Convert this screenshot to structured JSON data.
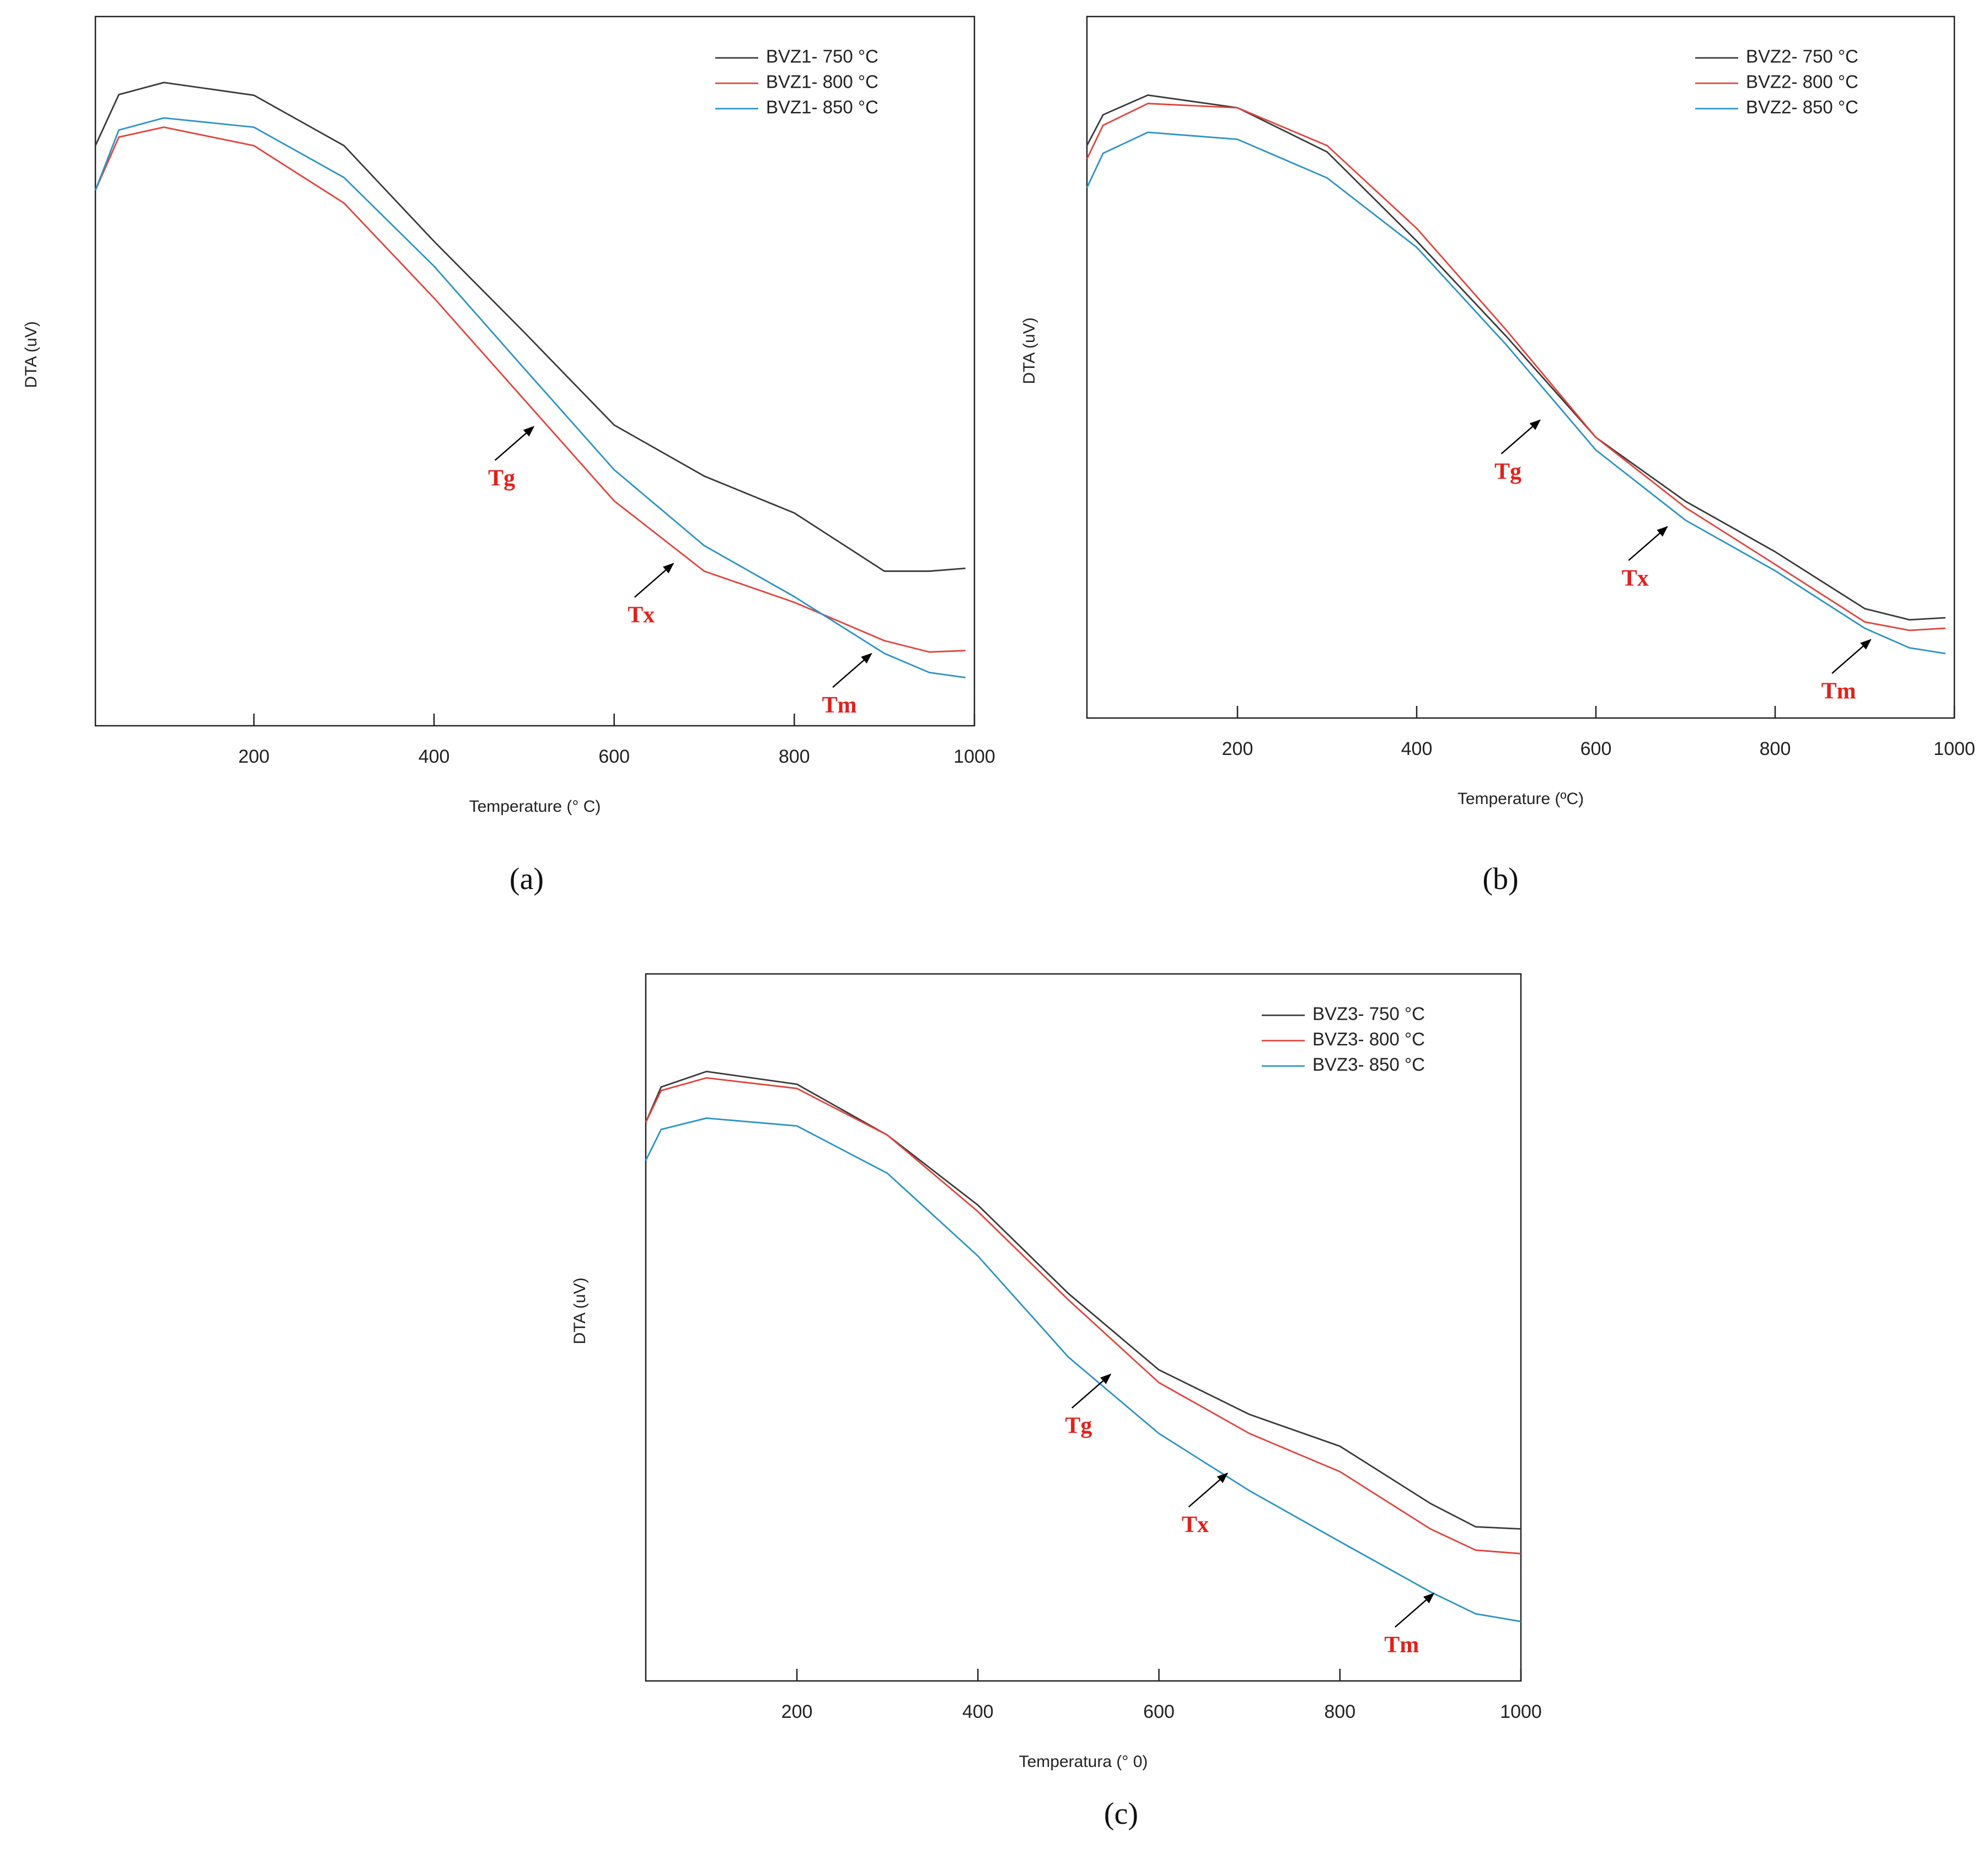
{
  "chart_data": [
    {
      "type": "line",
      "label": "(a)",
      "xlabel": "Temperature (° C)",
      "ylabel": "DTA (uV)",
      "x": [
        24,
        50,
        100,
        200,
        300,
        400,
        500,
        600,
        700,
        800,
        900,
        950,
        990
      ],
      "series": [
        {
          "name": "BVZ1- 750 °C",
          "color": "#3a3a3a",
          "values": [
            81.8,
            89,
            90.7,
            88.9,
            81.8,
            68.3,
            55.5,
            42.4,
            35.2,
            30,
            21.8,
            21.8,
            22.2
          ]
        },
        {
          "name": "BVZ1- 800 °C",
          "color": "#e0443c",
          "values": [
            75.5,
            83,
            84.4,
            81.8,
            73.7,
            60.3,
            46,
            31.7,
            21.8,
            17.4,
            12,
            10.4,
            10.6
          ]
        },
        {
          "name": "BVZ1- 850 °C",
          "color": "#2c93c6",
          "values": [
            75.5,
            84,
            85.7,
            84.4,
            77.3,
            64.8,
            50.4,
            36.1,
            25.4,
            18.2,
            10.2,
            7.5,
            6.8
          ]
        }
      ],
      "xlim": [
        24,
        1000
      ],
      "xticks": [
        200,
        400,
        600,
        800,
        1000
      ],
      "ylim": [
        0,
        100
      ],
      "legend": "upper right",
      "annotations": [
        {
          "text": "Tg",
          "x": 513,
          "y": 42.4
        },
        {
          "text": "Tx",
          "x": 668,
          "y": 23.1
        },
        {
          "text": "Tm",
          "x": 888,
          "y": 10.4
        }
      ]
    },
    {
      "type": "line",
      "label": "(b)",
      "xlabel": "Temperature (ºC)",
      "ylabel": "DTA (uV)",
      "x": [
        32,
        50,
        100,
        200,
        300,
        400,
        500,
        600,
        700,
        800,
        900,
        950,
        990
      ],
      "series": [
        {
          "name": "BVZ2- 750 °C",
          "color": "#3a3a3a",
          "values": [
            81.6,
            86,
            88.8,
            87,
            80.7,
            68,
            54.4,
            40,
            30.9,
            23.7,
            15.6,
            14,
            14.3
          ]
        },
        {
          "name": "BVZ2- 800 °C",
          "color": "#e0443c",
          "values": [
            79.7,
            84.5,
            87.6,
            87,
            81.6,
            69.8,
            55.3,
            40,
            30,
            21.9,
            13.7,
            12.5,
            12.8
          ]
        },
        {
          "name": "BVZ2- 850 °C",
          "color": "#2c93c6",
          "values": [
            75.6,
            80.5,
            83.5,
            82.5,
            77,
            67.1,
            53.2,
            38.2,
            28.2,
            21,
            12.8,
            10,
            9.2
          ]
        }
      ],
      "xlim": [
        32,
        1000
      ],
      "xticks": [
        200,
        400,
        600,
        800,
        1000
      ],
      "ylim": [
        0,
        100
      ],
      "legend": "upper right",
      "annotations": [
        {
          "text": "Tg",
          "x": 540,
          "y": 42.7
        },
        {
          "text": "Tx",
          "x": 682,
          "y": 27.5
        },
        {
          "text": "Tm",
          "x": 909,
          "y": 11.4
        }
      ]
    },
    {
      "type": "line",
      "label": "(c)",
      "xlabel": "Temperatura (° 0)",
      "ylabel": "DTA (uV)",
      "x": [
        33,
        50,
        100,
        200,
        300,
        400,
        500,
        600,
        700,
        800,
        900,
        950,
        1000
      ],
      "series": [
        {
          "name": "BVZ3- 750 °C",
          "color": "#3a3a3a",
          "values": [
            79,
            84,
            86.2,
            84.4,
            77.2,
            67.3,
            54.8,
            44,
            37.7,
            33.2,
            25.1,
            21.8,
            21.5
          ]
        },
        {
          "name": "BVZ3- 800 °C",
          "color": "#e0443c",
          "values": [
            79,
            83.5,
            85.3,
            83.8,
            77.2,
            66.4,
            53.9,
            42.2,
            35,
            29.6,
            21.5,
            18.5,
            18
          ]
        },
        {
          "name": "BVZ3- 850 °C",
          "color": "#2c93c6",
          "values": [
            73.6,
            78,
            79.6,
            78.5,
            71.8,
            60.1,
            45.8,
            35,
            26.9,
            19.7,
            12.6,
            9.5,
            8.4
          ]
        }
      ],
      "xlim": [
        33,
        1000
      ],
      "xticks": [
        200,
        400,
        600,
        800,
        1000
      ],
      "ylim": [
        0,
        100
      ],
      "legend": "upper right",
      "annotations": [
        {
          "text": "Tg",
          "x": 549,
          "y": 43.6
        },
        {
          "text": "Tx",
          "x": 678,
          "y": 29.6
        },
        {
          "text": "Tm",
          "x": 906,
          "y": 12.6
        }
      ]
    }
  ]
}
